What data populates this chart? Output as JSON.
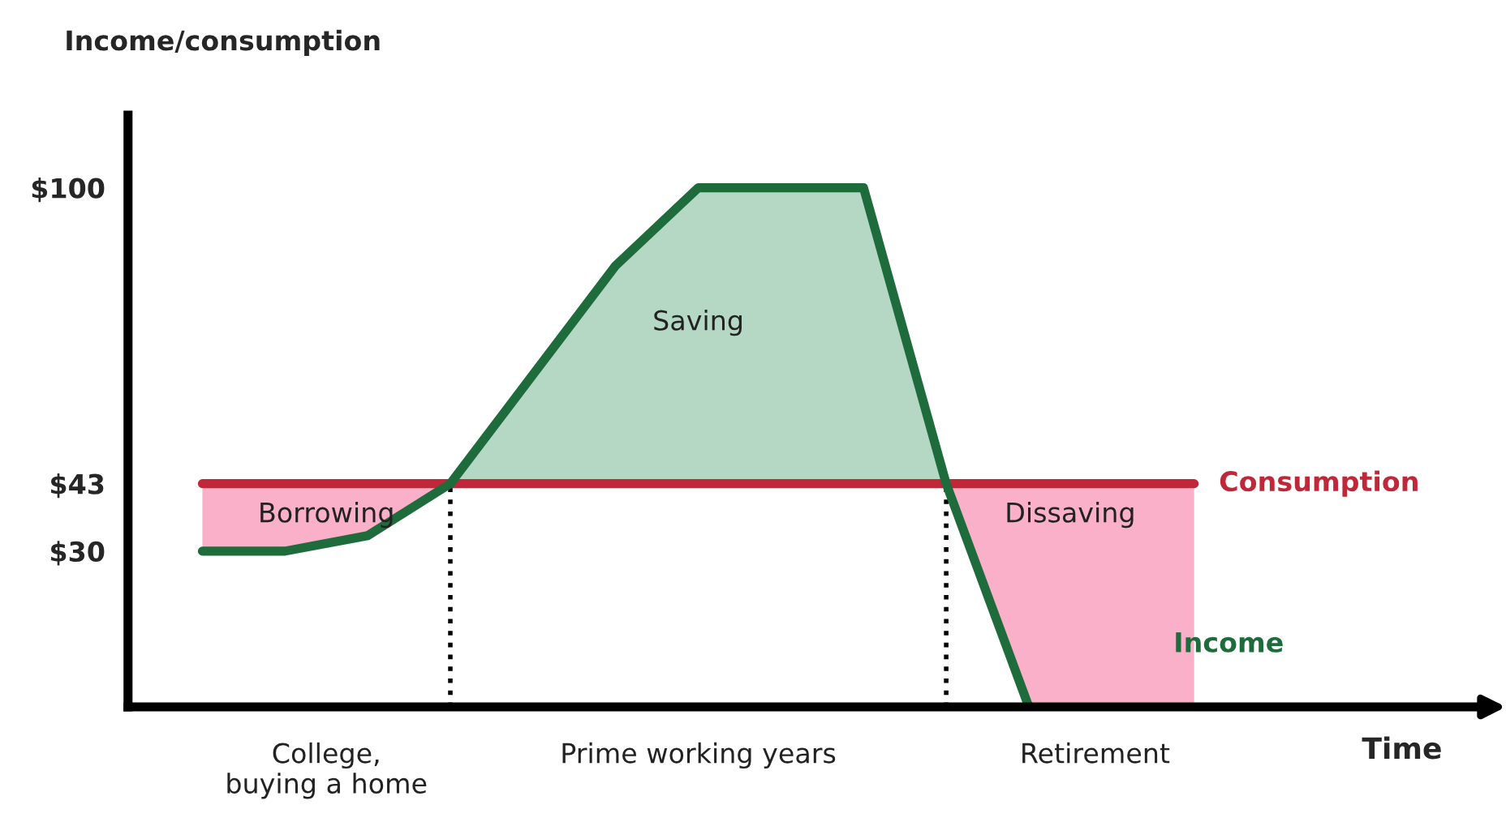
{
  "chart_data": {
    "type": "line",
    "ylabel": "Income/consumption",
    "xlabel": "Time",
    "ylim": [
      0,
      114
    ],
    "categories": [
      null,
      null,
      null,
      null,
      null,
      null,
      null,
      null,
      null,
      null,
      null,
      null,
      null
    ],
    "yticks": [
      {
        "value": 30,
        "label": "$30"
      },
      {
        "value": 43,
        "label": "$43"
      },
      {
        "value": 100,
        "label": "$100"
      }
    ],
    "series": [
      {
        "name": "Consumption",
        "color": "#c0283a",
        "values": [
          43,
          43,
          43,
          43,
          43,
          43,
          43,
          43,
          43,
          43,
          43,
          43,
          43
        ],
        "errors": [
          null,
          null,
          null,
          [
            0,
            43
          ],
          null,
          null,
          null,
          null,
          null,
          [
            0,
            43
          ],
          null,
          null,
          null
        ]
      },
      {
        "name": "Income",
        "color": "#1e6b3c",
        "values": [
          30,
          30,
          33,
          43,
          64,
          85,
          100,
          100,
          100,
          43,
          0,
          null,
          null
        ]
      }
    ],
    "annotations": [
      "Borrowing",
      "Saving",
      "Dissaving",
      "College,\nbuying a home",
      "Prime working years",
      "Retirement"
    ],
    "grid": false,
    "legend": false,
    "marker": "none",
    "line_style": "solid"
  }
}
